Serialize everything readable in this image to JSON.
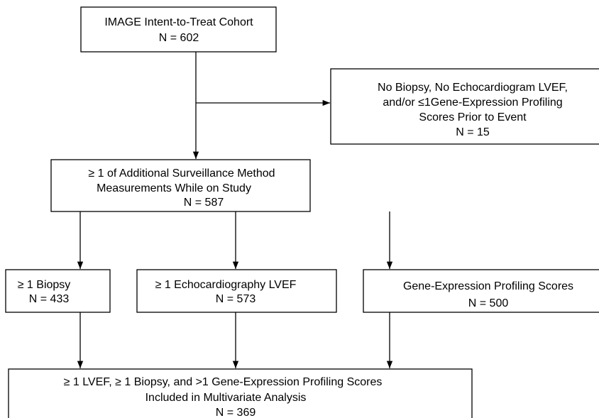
{
  "nodes": [
    {
      "lines": [
        "IMAGE Intent-to-Treat Cohort",
        "N = 602"
      ]
    },
    {
      "lines": [
        "No Biopsy, No Echocardiogram LVEF,",
        "and/or ≤1Gene-Expression Profiling",
        "Scores Prior to Event",
        "N = 15"
      ]
    },
    {
      "lines": [
        "≥ 1 of Additional Surveillance Method",
        "Measurements While on Study",
        "N = 587"
      ]
    },
    {
      "lines": [
        "≥ 1 Biopsy",
        "N = 433"
      ]
    },
    {
      "lines": [
        "≥ 1 Echocardiography LVEF",
        "N = 573"
      ]
    },
    {
      "lines": [
        "Gene-Expression Profiling Scores",
        "N = 500"
      ]
    },
    {
      "lines": [
        "≥ 1 LVEF, ≥ 1 Biopsy, and >1 Gene-Expression Profiling Scores",
        "Included in Multivariate Analysis",
        "N = 369"
      ]
    }
  ]
}
